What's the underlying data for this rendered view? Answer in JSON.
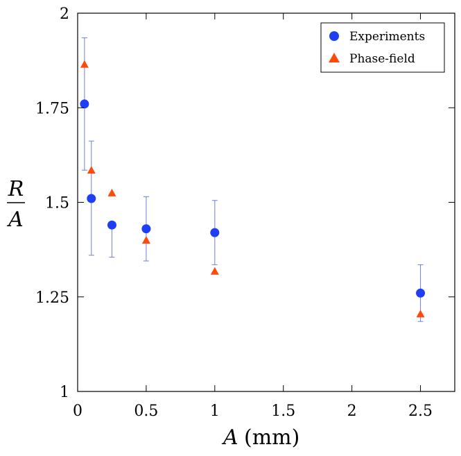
{
  "chart_data": {
    "type": "scatter",
    "title": "",
    "xlabel": {
      "symbol": "A",
      "unit": "(mm)"
    },
    "ylabel": {
      "numerator": "R",
      "denominator": "A"
    },
    "xlim": [
      0,
      2.75
    ],
    "ylim": [
      1,
      2
    ],
    "xticks": [
      0,
      0.5,
      1,
      1.5,
      2,
      2.5
    ],
    "xtick_labels": [
      "0",
      "0.5",
      "1",
      "1.5",
      "2",
      "2.5"
    ],
    "yticks": [
      1,
      1.25,
      1.5,
      1.75,
      2
    ],
    "ytick_labels": [
      "1",
      "1.25",
      "1.5",
      "1.75",
      "2"
    ],
    "grid": false,
    "legend_position": "top-right",
    "series": [
      {
        "name": "Experiments",
        "marker": "circle",
        "color": "#1f3ff5",
        "error_color": "#6f7fd8",
        "x": [
          0.05,
          0.1,
          0.25,
          0.5,
          1.0,
          2.5
        ],
        "y": [
          1.76,
          1.51,
          1.44,
          1.43,
          1.42,
          1.26
        ],
        "yerr_low": [
          1.585,
          1.36,
          1.355,
          1.345,
          1.335,
          1.185
        ],
        "yerr_high": [
          1.935,
          1.662,
          1.44,
          1.515,
          1.505,
          1.335
        ]
      },
      {
        "name": "Phase-field",
        "marker": "triangle",
        "color": "#ff4a0a",
        "x": [
          0.05,
          0.1,
          0.25,
          0.5,
          1.0,
          2.5
        ],
        "y": [
          1.865,
          1.585,
          1.525,
          1.4,
          1.318,
          1.205
        ]
      }
    ]
  }
}
